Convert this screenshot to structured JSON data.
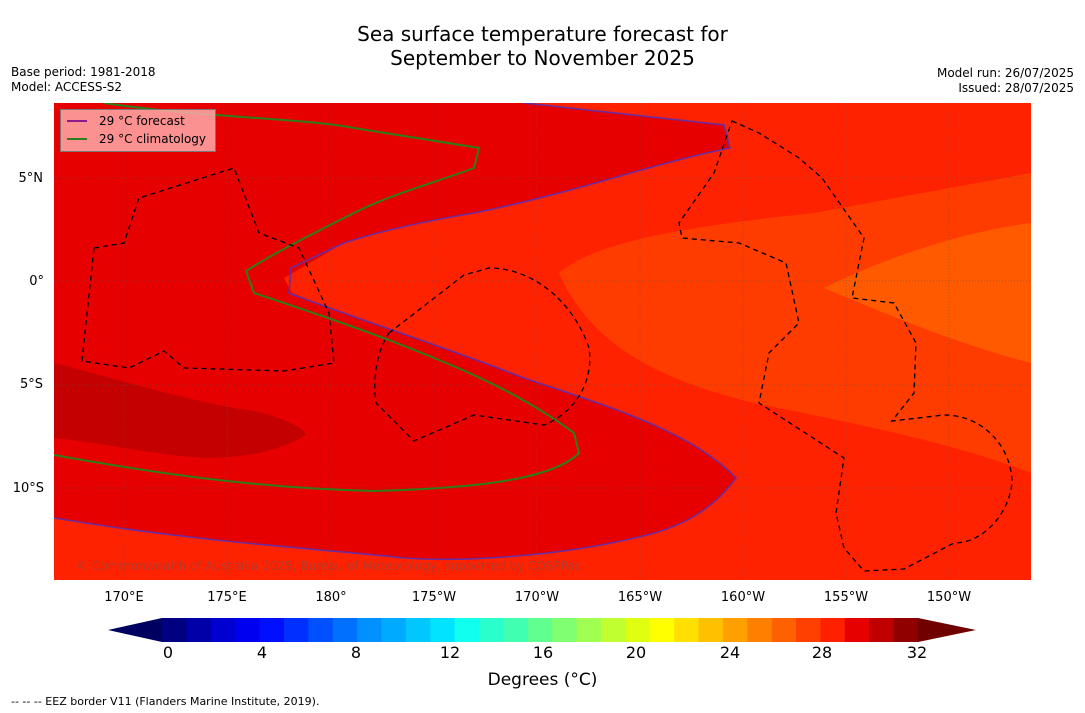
{
  "title": {
    "line1": "Sea surface temperature forecast for",
    "line2": "September to November 2025"
  },
  "meta_left": {
    "base_period": "Base period: 1981-2018",
    "model": "Model: ACCESS-S2"
  },
  "meta_right": {
    "model_run": "Model run: 26/07/2025",
    "issued": "Issued: 28/07/2025"
  },
  "legend": {
    "forecast_label": "29 °C  forecast",
    "forecast_color": "#8b1a8b",
    "climatology_label": "29 °C  climatology",
    "climatology_color": "#2e7d1a"
  },
  "map": {
    "lat_labels": [
      "5°N",
      "0°",
      "5°S",
      "10°S"
    ],
    "lon_labels": [
      "170°E",
      "175°E",
      "180°",
      "175°W",
      "170°W",
      "165°W",
      "160°W",
      "155°W",
      "150°W"
    ],
    "copyright": "© Commonwealth of Australia 2025, Bureau of Meteorology, supported by COSPPac",
    "colors": {
      "c31_32": "#d40000",
      "c30_31": "#e60000",
      "c29_30": "#ff2200",
      "c28_29": "#ff3c00",
      "c27_28": "#ff5a00",
      "deep": "#c40000"
    }
  },
  "colorbar": {
    "ticks": [
      "0",
      "4",
      "8",
      "12",
      "16",
      "20",
      "24",
      "28",
      "32"
    ],
    "label": "Degrees (°C)",
    "colors": [
      "#000080",
      "#0000a8",
      "#0000d0",
      "#0000f0",
      "#0010ff",
      "#0030ff",
      "#0050ff",
      "#0070ff",
      "#0090ff",
      "#00aaff",
      "#00c8ff",
      "#00e4ff",
      "#10ffee",
      "#28ffcc",
      "#40ffb0",
      "#60ff90",
      "#80ff70",
      "#a0ff50",
      "#c0ff30",
      "#e0ff10",
      "#ffff00",
      "#ffe000",
      "#ffc000",
      "#ffa000",
      "#ff8000",
      "#ff6000",
      "#ff4000",
      "#ff2000",
      "#e60000",
      "#c00000",
      "#900000"
    ]
  },
  "footnote": "--  --  -- EEZ border V11 (Flanders Marine Institute, 2019)."
}
